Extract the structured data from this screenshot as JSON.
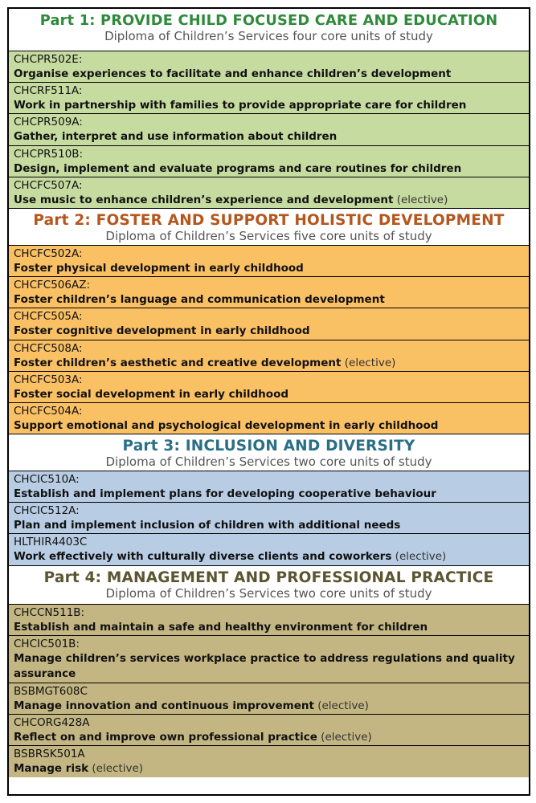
{
  "colors": {
    "part1_title": "#2e8b3a",
    "part1_bg": "#c6dba0",
    "part2_title": "#b4571e",
    "part2_bg": "#fac064",
    "part3_title": "#2a6f86",
    "part3_bg": "#b8cde4",
    "part4_title": "#5b5530",
    "part4_bg": "#c3b683"
  },
  "parts": [
    {
      "title": "Part 1: PROVIDE CHILD FOCUSED CARE AND EDUCATION",
      "subtitle": "Diploma of Children’s Services four core units of study",
      "units": [
        {
          "code": "CHCPR502E:",
          "title": "Organise experiences to facilitate and enhance children’s development",
          "note": ""
        },
        {
          "code": "CHCRF511A:",
          "title": "Work in partnership with families to provide appropriate care for children",
          "note": ""
        },
        {
          "code": "CHCPR509A:",
          "title": "Gather, interpret and use information about children",
          "note": ""
        },
        {
          "code": "CHCPR510B:",
          "title": "Design, implement and evaluate programs and care routines for children",
          "note": ""
        },
        {
          "code": "CHCFC507A:",
          "title": "Use music to enhance children’s experience and development",
          "note": "(elective)"
        }
      ]
    },
    {
      "title": "Part 2: FOSTER AND SUPPORT HOLISTIC DEVELOPMENT",
      "subtitle": "Diploma of Children’s Services five core units of study",
      "units": [
        {
          "code": "CHCFC502A:",
          "title": "Foster physical development in early childhood",
          "note": ""
        },
        {
          "code": "CHCFC506AZ:",
          "title": "Foster children’s language and communication development",
          "note": ""
        },
        {
          "code": "CHCFC505A:",
          "title": "Foster cognitive development in early childhood",
          "note": ""
        },
        {
          "code": "CHCFC508A:",
          "title": "Foster children’s aesthetic and creative development",
          "note": "(elective)"
        },
        {
          "code": "CHCFC503A:",
          "title": "Foster social development in early childhood",
          "note": ""
        },
        {
          "code": "CHCFC504A:",
          "title": "Support emotional and psychological development in early childhood",
          "note": ""
        }
      ]
    },
    {
      "title": "Part 3: INCLUSION AND DIVERSITY",
      "subtitle": "Diploma of Children’s Services two core units of study",
      "units": [
        {
          "code": "CHCIC510A:",
          "title": "Establish and implement plans for developing cooperative behaviour",
          "note": ""
        },
        {
          "code": "CHCIC512A:",
          "title": "Plan and implement inclusion of children with additional needs",
          "note": ""
        },
        {
          "code": "HLTHIR4403C",
          "title": "Work effectively with culturally diverse clients and coworkers",
          "note": "(elective)"
        }
      ]
    },
    {
      "title": "Part 4: MANAGEMENT AND PROFESSIONAL PRACTICE",
      "subtitle": "Diploma of Children’s Services two core units of study",
      "units": [
        {
          "code": "CHCCN511B:",
          "title": "Establish and maintain a safe and healthy environment for children",
          "note": ""
        },
        {
          "code": "CHCIC501B:",
          "title": "Manage children’s services workplace practice to address regulations and quality assurance",
          "note": ""
        },
        {
          "code": "BSBMGT608C",
          "title": "Manage innovation and continuous improvement",
          "note": "(elective)"
        },
        {
          "code": "CHCORG428A",
          "title": "Reflect on and improve own professional practice",
          "note": "(elective)"
        },
        {
          "code": "BSBRSK501A",
          "title": "Manage risk",
          "note": "(elective)"
        }
      ]
    }
  ]
}
